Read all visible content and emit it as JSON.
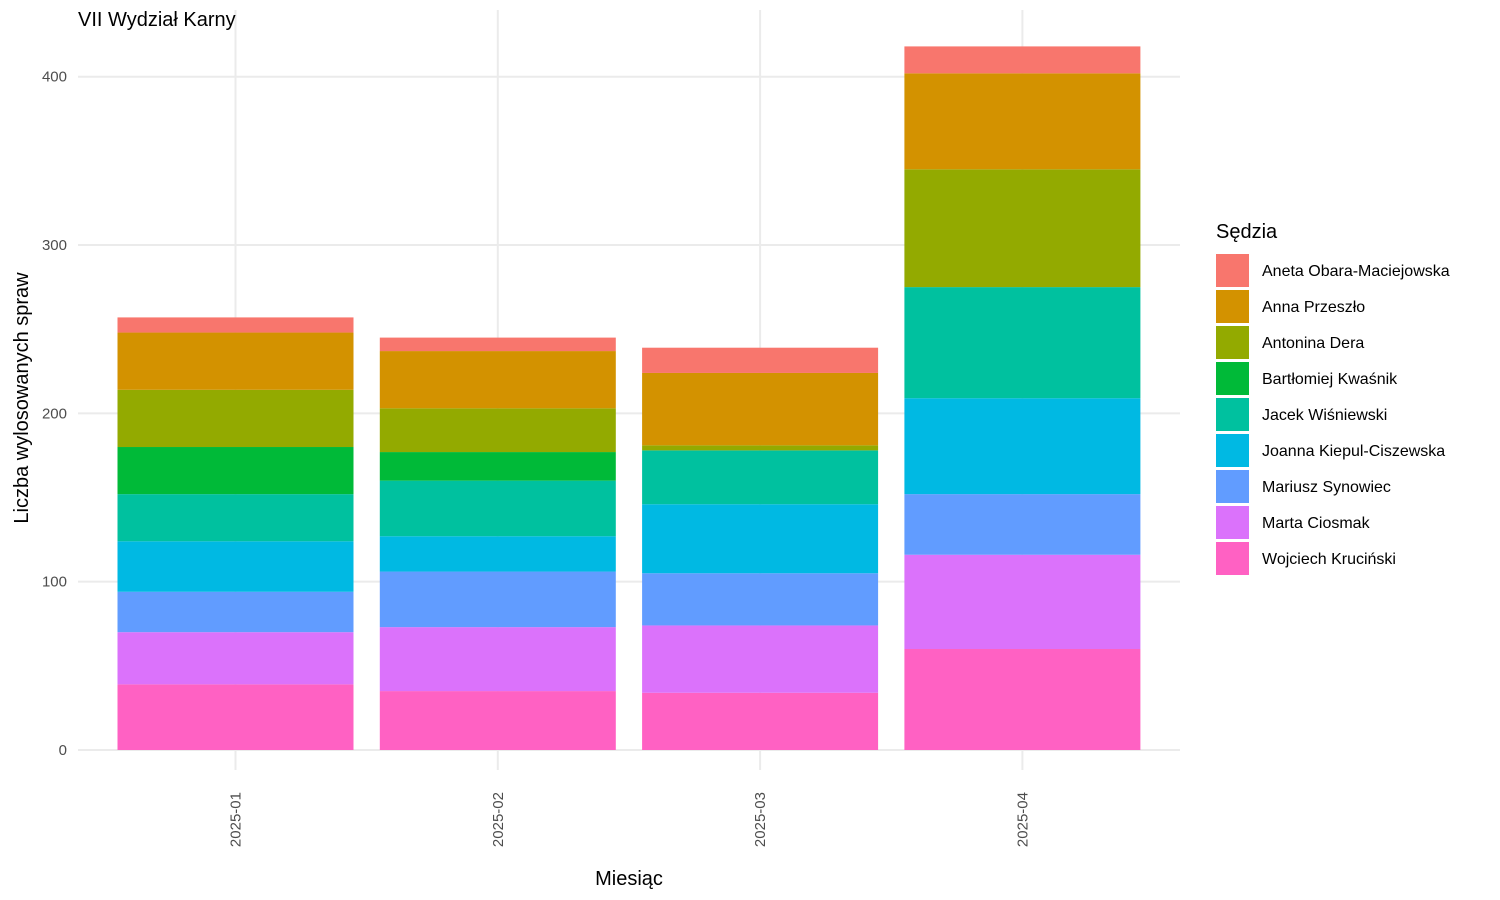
{
  "chart_data": {
    "type": "bar",
    "stacked": true,
    "title": "VII Wydział Karny",
    "xlabel": "Miesiąc",
    "ylabel": "Liczba wylosowanych spraw",
    "ylim": [
      0,
      430
    ],
    "yticks": [
      0,
      100,
      200,
      300,
      400
    ],
    "grid": true,
    "legend_title": "Sędzia",
    "legend_position": "right",
    "categories": [
      "2025-01",
      "2025-02",
      "2025-03",
      "2025-04"
    ],
    "series": [
      {
        "name": "Wojciech Kruciński",
        "color": "#FF61C3",
        "values": [
          39,
          35,
          34,
          60
        ]
      },
      {
        "name": "Marta Ciosmak",
        "color": "#DB72FB",
        "values": [
          31,
          38,
          40,
          56
        ]
      },
      {
        "name": "Mariusz Synowiec",
        "color": "#619CFF",
        "values": [
          24,
          33,
          31,
          36
        ]
      },
      {
        "name": "Joanna Kiepul-Ciszewska",
        "color": "#00B9E3",
        "values": [
          30,
          21,
          41,
          57
        ]
      },
      {
        "name": "Jacek Wiśniewski",
        "color": "#00C19F",
        "values": [
          28,
          33,
          32,
          66
        ]
      },
      {
        "name": "Bartłomiej Kwaśnik",
        "color": "#00BA38",
        "values": [
          28,
          17,
          0,
          0
        ]
      },
      {
        "name": "Antonina Dera",
        "color": "#93AA00",
        "values": [
          34,
          26,
          3,
          70
        ]
      },
      {
        "name": "Anna Przeszło",
        "color": "#D39200",
        "values": [
          34,
          34,
          43,
          57
        ]
      },
      {
        "name": "Aneta Obara-Maciejowska",
        "color": "#F8766D",
        "values": [
          9,
          8,
          15,
          16
        ]
      }
    ],
    "legend_order": [
      "Aneta Obara-Maciejowska",
      "Anna Przeszło",
      "Antonina Dera",
      "Bartłomiej Kwaśnik",
      "Jacek Wiśniewski",
      "Joanna Kiepul-Ciszewska",
      "Mariusz Synowiec",
      "Marta Ciosmak",
      "Wojciech Kruciński"
    ]
  }
}
